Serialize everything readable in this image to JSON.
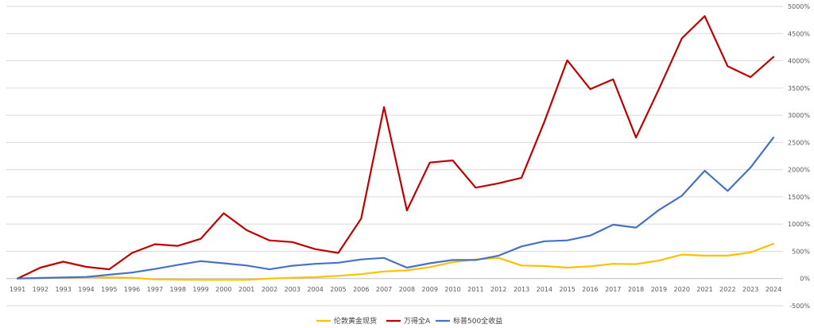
{
  "chart_data": {
    "type": "line",
    "title": "",
    "xlabel": "",
    "ylabel": "",
    "ylim": [
      -500,
      5000
    ],
    "y_step": 500,
    "y_tick_format": "percent",
    "grid": "horizontal",
    "legend_position": "bottom-center",
    "x": [
      "1991",
      "1992",
      "1993",
      "1994",
      "1995",
      "1996",
      "1997",
      "1998",
      "1999",
      "2000",
      "2001",
      "2002",
      "2003",
      "2004",
      "2005",
      "2006",
      "2007",
      "2008",
      "2009",
      "2010",
      "2011",
      "2012",
      "2013",
      "2014",
      "2015",
      "2016",
      "2017",
      "2018",
      "2019",
      "2020",
      "2021",
      "2022",
      "2023",
      "2024"
    ],
    "series": [
      {
        "name": "伦敦黄金现货",
        "color": "#FFC000",
        "values": [
          0,
          10,
          15,
          25,
          20,
          15,
          -15,
          -20,
          -25,
          -25,
          -25,
          0,
          15,
          25,
          50,
          80,
          130,
          150,
          210,
          300,
          350,
          380,
          240,
          230,
          200,
          225,
          270,
          265,
          330,
          440,
          420,
          420,
          480,
          640
        ]
      },
      {
        "name": "万得全A",
        "color": "#C00000",
        "values": [
          0,
          200,
          310,
          215,
          170,
          470,
          630,
          600,
          730,
          1200,
          890,
          700,
          670,
          540,
          470,
          1100,
          3150,
          1250,
          2130,
          2170,
          1670,
          1750,
          1850,
          2880,
          4010,
          3480,
          3660,
          2590,
          3480,
          4410,
          4820,
          3900,
          3700,
          4070
        ]
      },
      {
        "name": "标普500全收益",
        "color": "#4472C4",
        "values": [
          0,
          10,
          20,
          30,
          70,
          110,
          175,
          250,
          320,
          280,
          240,
          170,
          235,
          270,
          290,
          350,
          380,
          200,
          280,
          340,
          340,
          420,
          590,
          685,
          700,
          790,
          990,
          935,
          1260,
          1520,
          1980,
          1610,
          2040,
          2590
        ]
      }
    ]
  }
}
